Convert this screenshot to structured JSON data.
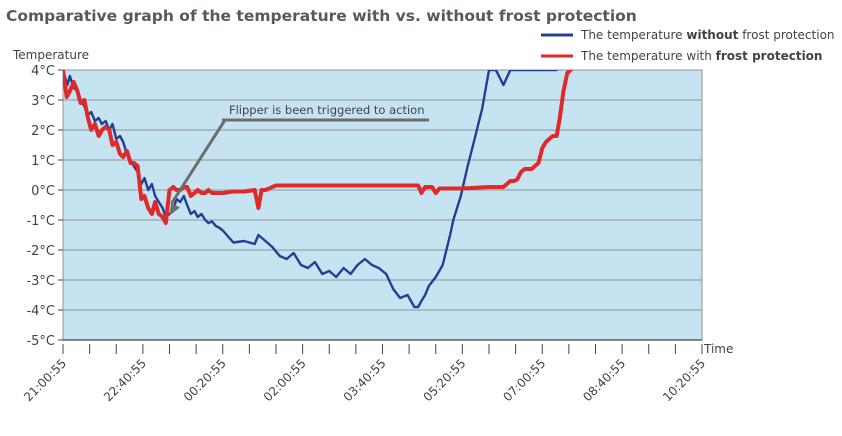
{
  "chart_data": {
    "type": "line",
    "title": "Comparative graph of the temperature with vs. without frost protection",
    "ylabel": "Temperature",
    "xlabel": "Time",
    "ylim": [
      -5,
      4
    ],
    "yticks": [
      "4°C",
      "3°C",
      "2°C",
      "1°C",
      "0°C",
      "-1°C",
      "-2°C",
      "-3°C",
      "-4°C",
      "-5°C"
    ],
    "ytick_values": [
      4,
      3,
      2,
      1,
      0,
      -1,
      -2,
      -3,
      -4,
      -5
    ],
    "xticks": [
      "21:00:55",
      "22:40:55",
      "00:20:55",
      "02:00:55",
      "03:40:55",
      "05:20:55",
      "07:00:55",
      "08:40:55",
      "10:20:55"
    ],
    "xlim": [
      0,
      12
    ],
    "grid": true,
    "legend_placement": "top-right",
    "background_color": "#c5e3f1",
    "annotation": {
      "text": "Flipper is been triggered to action",
      "target": [
        2.0,
        -0.85
      ]
    },
    "series": [
      {
        "name_parts": [
          {
            "text": "The temperature ",
            "bold": false
          },
          {
            "text": "without",
            "bold": true
          },
          {
            "text": " frost protection",
            "bold": false
          }
        ],
        "color": "#233f95",
        "x": [
          0,
          0.08,
          0.13,
          0.2,
          0.27,
          0.33,
          0.4,
          0.47,
          0.53,
          0.6,
          0.67,
          0.73,
          0.8,
          0.87,
          0.93,
          1.0,
          1.07,
          1.13,
          1.2,
          1.27,
          1.33,
          1.4,
          1.47,
          1.53,
          1.6,
          1.67,
          1.73,
          1.8,
          1.87,
          1.93,
          2.0,
          2.07,
          2.13,
          2.2,
          2.27,
          2.33,
          2.4,
          2.47,
          2.53,
          2.6,
          2.67,
          2.73,
          2.8,
          2.87,
          2.93,
          3.0,
          3.2,
          3.4,
          3.6,
          3.67,
          3.8,
          3.93,
          4.07,
          4.2,
          4.33,
          4.47,
          4.6,
          4.73,
          4.87,
          5.0,
          5.13,
          5.27,
          5.4,
          5.53,
          5.67,
          5.8,
          5.93,
          6.07,
          6.2,
          6.33,
          6.47,
          6.6,
          6.67,
          6.73,
          6.8,
          6.87,
          7.0,
          7.13,
          7.27,
          7.33,
          7.47,
          7.6,
          7.73,
          7.87,
          8.0,
          8.13,
          8.27,
          8.4,
          8.53,
          8.67,
          8.8,
          8.87,
          8.93,
          9.0,
          9.07,
          9.13,
          9.2,
          9.27
        ],
        "values": [
          4,
          3.5,
          3.8,
          3.4,
          3.3,
          3.0,
          2.8,
          2.5,
          2.6,
          2.3,
          2.4,
          2.2,
          2.3,
          2.0,
          2.2,
          1.7,
          1.8,
          1.6,
          1.2,
          1.0,
          0.8,
          0.6,
          0.2,
          0.4,
          0.0,
          0.2,
          -0.2,
          -0.4,
          -0.6,
          -0.9,
          -0.8,
          -0.7,
          -0.3,
          -0.4,
          -0.2,
          -0.5,
          -0.8,
          -0.7,
          -0.9,
          -0.8,
          -1.0,
          -1.1,
          -1.05,
          -1.2,
          -1.25,
          -1.35,
          -1.75,
          -1.7,
          -1.8,
          -1.5,
          -1.7,
          -1.9,
          -2.2,
          -2.3,
          -2.1,
          -2.5,
          -2.6,
          -2.4,
          -2.8,
          -2.7,
          -2.9,
          -2.6,
          -2.8,
          -2.5,
          -2.3,
          -2.5,
          -2.6,
          -2.8,
          -3.3,
          -3.6,
          -3.5,
          -3.9,
          -3.9,
          -3.7,
          -3.5,
          -3.2,
          -2.9,
          -2.5,
          -1.5,
          -1.0,
          -0.2,
          0.8,
          1.7,
          2.7,
          4.0,
          4.0,
          3.5,
          4.0,
          4.0,
          4.0,
          4.0,
          4.0,
          4.0,
          4.0,
          4.0,
          4.0,
          4.0,
          4.0
        ]
      },
      {
        "name_parts": [
          {
            "text": "The temperature with ",
            "bold": false
          },
          {
            "text": "frost protection",
            "bold": true
          }
        ],
        "color": "#e02a2a",
        "x": [
          0,
          0.07,
          0.13,
          0.2,
          0.27,
          0.33,
          0.4,
          0.47,
          0.53,
          0.6,
          0.67,
          0.73,
          0.8,
          0.87,
          0.93,
          1.0,
          1.07,
          1.13,
          1.2,
          1.27,
          1.33,
          1.4,
          1.47,
          1.53,
          1.6,
          1.67,
          1.73,
          1.8,
          1.87,
          1.93,
          2.0,
          2.07,
          2.13,
          2.2,
          2.27,
          2.33,
          2.4,
          2.47,
          2.53,
          2.6,
          2.67,
          2.73,
          2.8,
          2.87,
          2.93,
          3.0,
          3.2,
          3.4,
          3.6,
          3.67,
          3.73,
          3.8,
          3.87,
          3.93,
          4.0,
          4.5,
          5.0,
          5.5,
          6.0,
          6.5,
          6.67,
          6.73,
          6.8,
          6.87,
          6.93,
          7.0,
          7.07,
          7.13,
          7.2,
          7.27,
          7.5,
          8.0,
          8.13,
          8.27,
          8.4,
          8.47,
          8.53,
          8.6,
          8.67,
          8.8,
          8.93,
          9.0,
          9.07,
          9.13,
          9.2,
          9.27,
          9.33,
          9.4,
          9.47,
          9.53,
          9.6
        ],
        "values": [
          4,
          3.1,
          3.3,
          3.6,
          3.3,
          2.9,
          3.0,
          2.4,
          2.0,
          2.2,
          1.8,
          2.0,
          2.1,
          2.0,
          1.5,
          1.6,
          1.2,
          1.1,
          1.3,
          0.9,
          0.9,
          0.8,
          -0.3,
          -0.2,
          -0.6,
          -0.8,
          -0.4,
          -0.8,
          -0.9,
          -1.1,
          0.0,
          0.1,
          0.0,
          0.0,
          0.1,
          0.1,
          -0.2,
          -0.1,
          0.0,
          -0.1,
          -0.1,
          0.0,
          -0.1,
          -0.1,
          -0.1,
          -0.1,
          -0.05,
          -0.05,
          0.0,
          -0.6,
          0.0,
          0.0,
          0.05,
          0.1,
          0.15,
          0.15,
          0.15,
          0.15,
          0.15,
          0.15,
          0.15,
          -0.1,
          0.1,
          0.1,
          0.1,
          -0.1,
          0.05,
          0.05,
          0.05,
          0.05,
          0.05,
          0.1,
          0.1,
          0.1,
          0.3,
          0.3,
          0.35,
          0.6,
          0.7,
          0.7,
          0.9,
          1.4,
          1.6,
          1.7,
          1.8,
          1.8,
          2.4,
          3.3,
          3.9,
          4.0,
          4.1
        ]
      }
    ]
  }
}
